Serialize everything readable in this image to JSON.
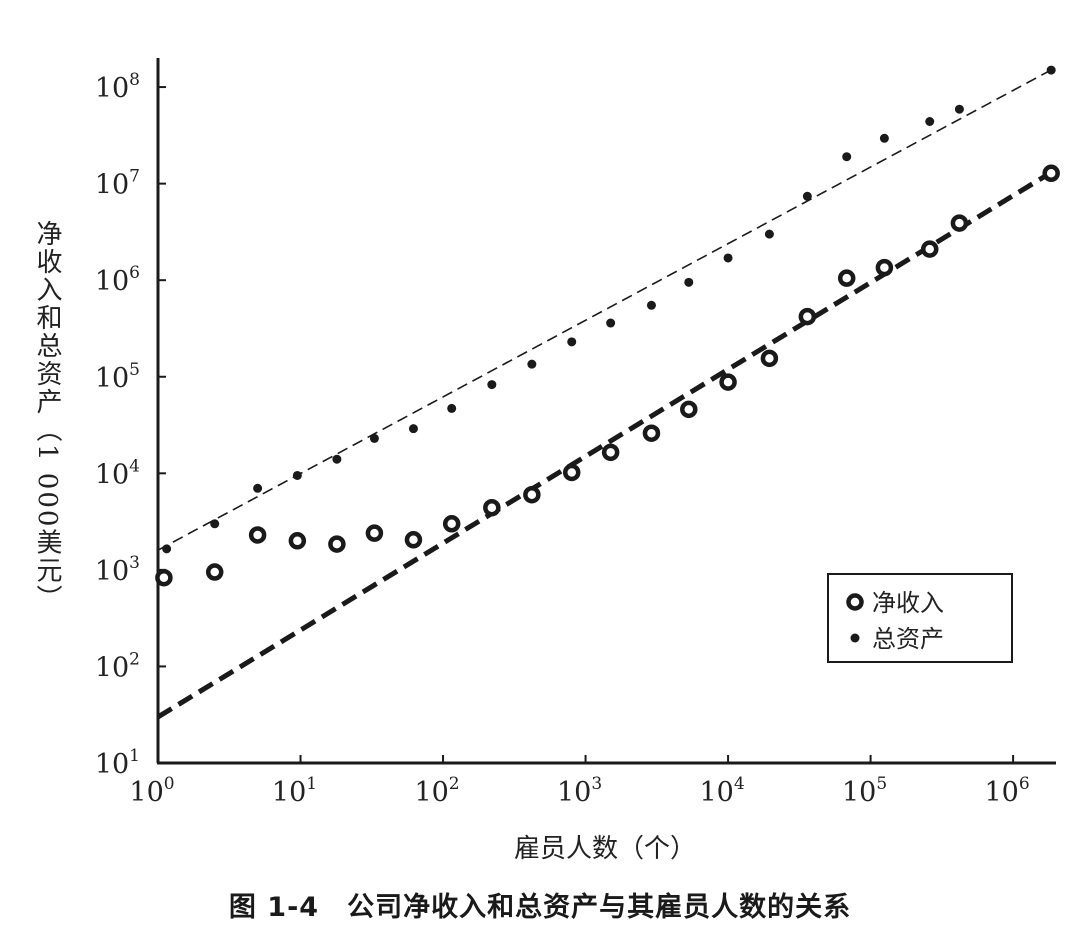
{
  "caption": "图 1-4　公司净收入和总资产与其雇员人数的关系",
  "chart_data": {
    "type": "scatter",
    "title": "",
    "xlabel": "雇员人数（个）",
    "ylabel": "净收入和总资产（1 000美元）",
    "xscale": "log",
    "yscale": "log",
    "xlim": [
      1,
      2000000
    ],
    "ylim": [
      10,
      200000000
    ],
    "x_ticks": [
      {
        "base": "10",
        "exp": "0",
        "value": 1
      },
      {
        "base": "10",
        "exp": "1",
        "value": 10
      },
      {
        "base": "10",
        "exp": "2",
        "value": 100
      },
      {
        "base": "10",
        "exp": "3",
        "value": 1000
      },
      {
        "base": "10",
        "exp": "4",
        "value": 10000
      },
      {
        "base": "10",
        "exp": "5",
        "value": 100000
      },
      {
        "base": "10",
        "exp": "6",
        "value": 1000000
      }
    ],
    "y_ticks": [
      {
        "base": "10",
        "exp": "1",
        "value": 10
      },
      {
        "base": "10",
        "exp": "2",
        "value": 100
      },
      {
        "base": "10",
        "exp": "3",
        "value": 1000
      },
      {
        "base": "10",
        "exp": "4",
        "value": 10000
      },
      {
        "base": "10",
        "exp": "5",
        "value": 100000
      },
      {
        "base": "10",
        "exp": "6",
        "value": 1000000
      },
      {
        "base": "10",
        "exp": "7",
        "value": 10000000
      },
      {
        "base": "10",
        "exp": "8",
        "value": 100000000
      }
    ],
    "legend_position": "bottom-right",
    "grid": false,
    "series": [
      {
        "name": "净收入",
        "marker": "open-circle",
        "color": "#1a1a1a",
        "points": [
          [
            1.1,
            830
          ],
          [
            2.5,
            950
          ],
          [
            5,
            2300
          ],
          [
            9.5,
            2000
          ],
          [
            18,
            1850
          ],
          [
            33,
            2400
          ],
          [
            62,
            2050
          ],
          [
            115,
            3000
          ],
          [
            220,
            4400
          ],
          [
            420,
            6000
          ],
          [
            800,
            10200
          ],
          [
            1500,
            16500
          ],
          [
            2900,
            26000
          ],
          [
            5300,
            46000
          ],
          [
            10000,
            88000
          ],
          [
            19500,
            155000
          ],
          [
            36000,
            420000
          ],
          [
            68000,
            1050000
          ],
          [
            125000,
            1350000
          ],
          [
            260000,
            2100000
          ],
          [
            420000,
            3900000
          ],
          [
            1850000,
            12800000
          ]
        ]
      },
      {
        "name": "总资产",
        "marker": "dot",
        "color": "#1a1a1a",
        "points": [
          [
            1.15,
            1650
          ],
          [
            2.5,
            3000
          ],
          [
            5,
            7000
          ],
          [
            9.5,
            9500
          ],
          [
            18,
            14000
          ],
          [
            33,
            23000
          ],
          [
            62,
            29000
          ],
          [
            115,
            47000
          ],
          [
            220,
            83000
          ],
          [
            420,
            135000
          ],
          [
            800,
            230000
          ],
          [
            1500,
            360000
          ],
          [
            2900,
            550000
          ],
          [
            5300,
            950000
          ],
          [
            10000,
            1700000
          ],
          [
            19500,
            3000000
          ],
          [
            36000,
            7400000
          ],
          [
            68000,
            19000000
          ],
          [
            125000,
            29500000
          ],
          [
            260000,
            44000000
          ],
          [
            420000,
            59000000
          ],
          [
            1850000,
            150000000
          ]
        ]
      }
    ],
    "fit_lines": [
      {
        "series": "净收入",
        "style": "thick-dashed",
        "from": [
          1,
          30
        ],
        "to": [
          2000000,
          14000000
        ]
      },
      {
        "series": "总资产",
        "style": "thin-dashed",
        "from": [
          1,
          1600
        ],
        "to": [
          2000000,
          160000000
        ]
      }
    ]
  }
}
